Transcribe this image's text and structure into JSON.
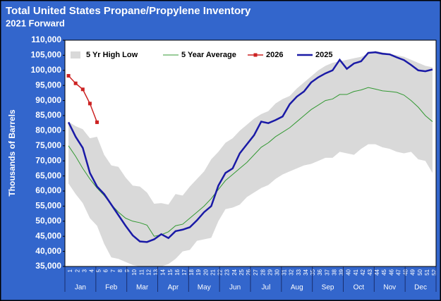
{
  "chart_data": {
    "type": "line",
    "title": "Total United States Propane/Propylene Inventory",
    "subtitle": "2021 Forward",
    "y_label": "Thousands of Barrels",
    "categories": [
      1,
      2,
      3,
      4,
      5,
      6,
      7,
      8,
      9,
      10,
      11,
      12,
      13,
      14,
      15,
      16,
      17,
      18,
      19,
      20,
      21,
      22,
      23,
      24,
      25,
      26,
      27,
      28,
      29,
      30,
      31,
      32,
      33,
      34,
      35,
      36,
      37,
      38,
      39,
      40,
      41,
      42,
      43,
      44,
      45,
      46,
      47,
      48,
      49,
      50,
      51,
      52
    ],
    "month_labels": [
      "Jan",
      "Feb",
      "Mar",
      "Apr",
      "May",
      "Jun",
      "Jul",
      "Aug",
      "Sep",
      "Oct",
      "Nov",
      "Dec"
    ],
    "ylim": [
      35000,
      110000
    ],
    "yticks": [
      {
        "value": 35000,
        "label": "35,000"
      },
      {
        "value": 40000,
        "label": "40,000"
      },
      {
        "value": 45000,
        "label": "45,000"
      },
      {
        "value": 50000,
        "label": "50,000"
      },
      {
        "value": 55000,
        "label": "55,000"
      },
      {
        "value": 60000,
        "label": "60,000"
      },
      {
        "value": 65000,
        "label": "65,000"
      },
      {
        "value": 70000,
        "label": "70,000"
      },
      {
        "value": 75000,
        "label": "75,000"
      },
      {
        "value": 80000,
        "label": "80,000"
      },
      {
        "value": 85000,
        "label": "85,000"
      },
      {
        "value": 90000,
        "label": "90,000"
      },
      {
        "value": 95000,
        "label": "95,000"
      },
      {
        "value": 100000,
        "label": "100,000"
      },
      {
        "value": 105000,
        "label": "105,000"
      },
      {
        "value": 110000,
        "label": "110,000"
      }
    ],
    "grid": false,
    "legend": "top-left",
    "series": [
      {
        "name": "5 Yr High Low",
        "type": "band",
        "color": "#d9d9d9",
        "values": [
          83000,
          81500,
          80500,
          77500,
          78000,
          72000,
          68500,
          68000,
          64500,
          61800,
          61500,
          59500,
          55800,
          56000,
          55500,
          59000,
          58500,
          61500,
          64000,
          66500,
          70500,
          73000,
          76000,
          77500,
          80000,
          82000,
          84000,
          85500,
          86500,
          89000,
          90500,
          91500,
          94000,
          96000,
          98000,
          100000,
          101500,
          102500,
          103000,
          103500,
          104000,
          104500,
          105500,
          106500,
          106000,
          105500,
          105000,
          104500,
          103500,
          102500,
          101500,
          101000
        ],
        "low": [
          62500,
          59000,
          56000,
          51000,
          48500,
          42500,
          38000,
          37500,
          36500,
          35500,
          35000,
          35000,
          35000,
          35000,
          35800,
          37500,
          40000,
          40500,
          43500,
          44000,
          44500,
          50000,
          54000,
          54500,
          55500,
          58000,
          59500,
          61000,
          62000,
          64000,
          65500,
          66500,
          67500,
          68500,
          69000,
          70000,
          71000,
          71000,
          73000,
          72500,
          72000,
          74000,
          75500,
          75500,
          74500,
          74000,
          73000,
          72500,
          73000,
          70500,
          70000,
          66000
        ]
      },
      {
        "name": "5 Year Average",
        "color": "#339933",
        "width": 1,
        "values": [
          75000,
          71500,
          67500,
          64000,
          61000,
          58500,
          55500,
          53000,
          51000,
          50000,
          49500,
          48700,
          45000,
          45500,
          46500,
          48500,
          49000,
          51000,
          53000,
          55000,
          57500,
          60500,
          63500,
          65500,
          67500,
          69500,
          72000,
          74500,
          76000,
          78000,
          79500,
          81000,
          83000,
          85000,
          87000,
          88500,
          90000,
          90500,
          92000,
          92000,
          93000,
          93500,
          94300,
          93800,
          93200,
          93000,
          92700,
          91800,
          90000,
          87800,
          85000,
          83000
        ]
      },
      {
        "name": "2026",
        "color": "#cc2222",
        "width": 1.5,
        "marker": "square",
        "values": [
          98200,
          95700,
          93700,
          89000,
          82800,
          null,
          null,
          null,
          null,
          null,
          null,
          null,
          null,
          null,
          null,
          null,
          null,
          null,
          null,
          null,
          null,
          null,
          null,
          null,
          null,
          null,
          null,
          null,
          null,
          null,
          null,
          null,
          null,
          null,
          null,
          null,
          null,
          null,
          null,
          null,
          null,
          null,
          null,
          null,
          null,
          null,
          null,
          null,
          null,
          null,
          null,
          null
        ]
      },
      {
        "name": "2025",
        "color": "#1a1aa6",
        "width": 2.5,
        "values": [
          82800,
          78000,
          74300,
          66000,
          61500,
          59000,
          55500,
          52000,
          48500,
          45300,
          43300,
          43100,
          44000,
          45700,
          44400,
          46700,
          47200,
          48000,
          50300,
          53000,
          55000,
          61800,
          66000,
          67500,
          72500,
          75500,
          78500,
          83000,
          82500,
          83500,
          84700,
          88800,
          91300,
          93000,
          96000,
          97700,
          99000,
          100000,
          103500,
          100500,
          102300,
          103000,
          105800,
          106000,
          105500,
          105300,
          104300,
          103400,
          101800,
          100000,
          99700,
          100300
        ]
      }
    ]
  }
}
